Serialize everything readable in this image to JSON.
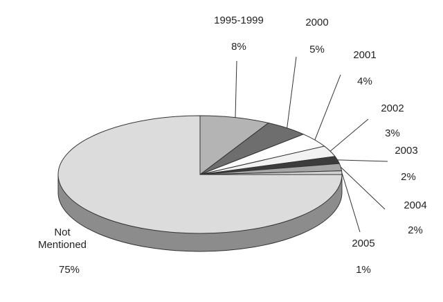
{
  "chart_data": {
    "type": "pie",
    "three_d": true,
    "categories": [
      "1995-1999",
      "2000",
      "2001",
      "2002",
      "2003",
      "2004",
      "2005",
      "Not Mentioned"
    ],
    "values": [
      8,
      5,
      4,
      3,
      2,
      2,
      1,
      75
    ],
    "value_labels": [
      "8%",
      "5%",
      "4%",
      "3%",
      "2%",
      "2%",
      "1%",
      "75%"
    ],
    "colors": [
      "#b4b4b4",
      "#6e6e6e",
      "#ffffff",
      "#f2f2f2",
      "#3c3c3c",
      "#a6a6a6",
      "#d2d2d2",
      "#dcdcdc"
    ]
  }
}
